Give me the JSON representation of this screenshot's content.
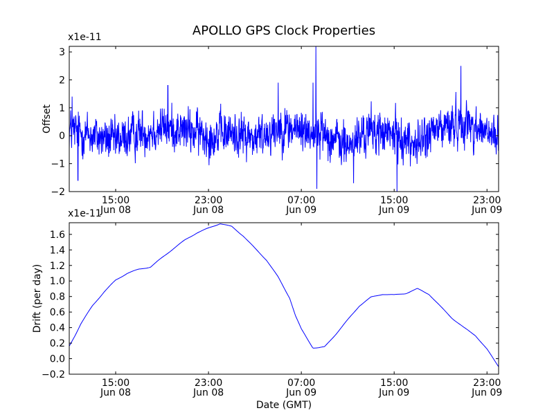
{
  "figure_title": "APOLLO GPS Clock Properties",
  "chart_data": [
    {
      "type": "line",
      "ylabel": "Offset",
      "multiplier_label": "x1e-11",
      "ylim": [
        -2,
        3.2
      ],
      "yticks": [
        -2,
        -1,
        0,
        1,
        2,
        3
      ],
      "ytick_labels": [
        "−2",
        "−1",
        "0",
        "1",
        "2",
        "3"
      ],
      "xlim": [
        "Jun 08 11:00",
        "Jun 10 00:00"
      ],
      "xticks": [
        {
          "value": "Jun 08 15:00",
          "label_time": "15:00",
          "label_date": "Jun 08"
        },
        {
          "value": "Jun 08 23:00",
          "label_time": "23:00",
          "label_date": "Jun 08"
        },
        {
          "value": "Jun 09 07:00",
          "label_time": "07:00",
          "label_date": "Jun 09"
        },
        {
          "value": "Jun 09 15:00",
          "label_time": "15:00",
          "label_date": "Jun 09"
        },
        {
          "value": "Jun 09 23:00",
          "label_time": "23:00",
          "label_date": "Jun 09"
        }
      ],
      "series": [
        {
          "color": "#0000ff",
          "x": [
            "Jun 08 11:00",
            "Jun 08 13:00",
            "Jun 08 15:00",
            "Jun 08 17:00",
            "Jun 08 19:00",
            "Jun 08 21:00",
            "Jun 08 23:00",
            "Jun 09 01:00",
            "Jun 09 03:00",
            "Jun 09 05:00",
            "Jun 09 07:00",
            "Jun 09 09:00",
            "Jun 09 11:00",
            "Jun 09 13:00",
            "Jun 09 15:00",
            "Jun 09 17:00",
            "Jun 09 19:00",
            "Jun 09 21:00",
            "Jun 09 23:00",
            "Jun 10 00:00"
          ],
          "y": [
            0.2,
            0.0,
            -0.2,
            0.1,
            0.3,
            0.2,
            0.0,
            0.1,
            -0.1,
            0.3,
            0.2,
            0.1,
            -0.4,
            0.2,
            0.0,
            -0.3,
            0.3,
            0.5,
            0.1,
            -0.2
          ],
          "noise_amplitude": 0.8,
          "spikes": [
            {
              "x": "Jun 08 11:15",
              "y": 1.4
            },
            {
              "x": "Jun 08 11:45",
              "y": -1.6
            },
            {
              "x": "Jun 08 19:30",
              "y": 1.8
            },
            {
              "x": "Jun 09 05:00",
              "y": 1.9
            },
            {
              "x": "Jun 09 08:00",
              "y": 1.9
            },
            {
              "x": "Jun 09 08:15",
              "y": 3.2
            },
            {
              "x": "Jun 09 08:20",
              "y": -1.9
            },
            {
              "x": "Jun 09 11:30",
              "y": -1.7
            },
            {
              "x": "Jun 09 15:15",
              "y": -2.0
            },
            {
              "x": "Jun 09 20:45",
              "y": 2.5
            }
          ]
        }
      ]
    },
    {
      "type": "line",
      "ylabel": "Drift (per day)",
      "xlabel": "Date (GMT)",
      "multiplier_label": "x1e-11",
      "ylim": [
        -0.2,
        1.75
      ],
      "yticks": [
        -0.2,
        0.0,
        0.2,
        0.4,
        0.6,
        0.8,
        1.0,
        1.2,
        1.4,
        1.6
      ],
      "ytick_labels": [
        "−0.2",
        "0.0",
        "0.2",
        "0.4",
        "0.6",
        "0.8",
        "1.0",
        "1.2",
        "1.4",
        "1.6"
      ],
      "xlim": [
        "Jun 08 11:00",
        "Jun 10 00:00"
      ],
      "xticks": [
        {
          "value": "Jun 08 15:00",
          "label_time": "15:00",
          "label_date": "Jun 08"
        },
        {
          "value": "Jun 08 23:00",
          "label_time": "23:00",
          "label_date": "Jun 08"
        },
        {
          "value": "Jun 09 07:00",
          "label_time": "07:00",
          "label_date": "Jun 09"
        },
        {
          "value": "Jun 09 15:00",
          "label_time": "15:00",
          "label_date": "Jun 09"
        },
        {
          "value": "Jun 09 23:00",
          "label_time": "23:00",
          "label_date": "Jun 09"
        }
      ],
      "series": [
        {
          "color": "#0000ff",
          "x": [
            "Jun 08 11:00",
            "Jun 08 11:30",
            "Jun 08 12:00",
            "Jun 08 13:00",
            "Jun 08 14:00",
            "Jun 08 15:00",
            "Jun 08 16:00",
            "Jun 08 17:00",
            "Jun 08 18:00",
            "Jun 08 19:00",
            "Jun 08 20:00",
            "Jun 08 21:00",
            "Jun 08 22:00",
            "Jun 08 23:00",
            "Jun 09 00:00",
            "Jun 09 01:00",
            "Jun 09 02:00",
            "Jun 09 03:00",
            "Jun 09 04:00",
            "Jun 09 05:00",
            "Jun 09 06:00",
            "Jun 09 06:30",
            "Jun 09 07:00",
            "Jun 09 08:00",
            "Jun 09 08:30",
            "Jun 09 09:00",
            "Jun 09 10:00",
            "Jun 09 11:00",
            "Jun 09 12:00",
            "Jun 09 13:00",
            "Jun 09 14:00",
            "Jun 09 15:00",
            "Jun 09 16:00",
            "Jun 09 17:00",
            "Jun 09 18:00",
            "Jun 09 19:00",
            "Jun 09 20:00",
            "Jun 09 21:00",
            "Jun 09 22:00",
            "Jun 09 23:00",
            "Jun 10 00:00"
          ],
          "y": [
            0.16,
            0.3,
            0.45,
            0.68,
            0.86,
            1.01,
            1.1,
            1.15,
            1.18,
            1.3,
            1.42,
            1.53,
            1.62,
            1.68,
            1.74,
            1.7,
            1.58,
            1.42,
            1.27,
            1.05,
            0.78,
            0.55,
            0.38,
            0.14,
            0.14,
            0.15,
            0.32,
            0.5,
            0.68,
            0.79,
            0.83,
            0.82,
            0.84,
            0.9,
            0.83,
            0.67,
            0.52,
            0.4,
            0.3,
            0.12,
            -0.1
          ]
        }
      ]
    }
  ]
}
